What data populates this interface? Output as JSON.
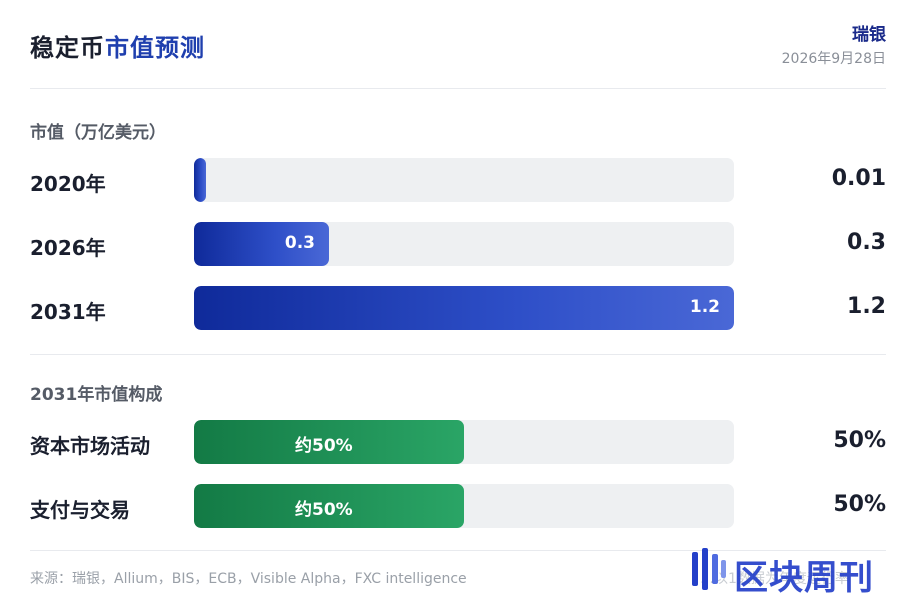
{
  "header": {
    "title_part1": "稳定币",
    "title_part2": "市值预测",
    "source_org": "瑞银",
    "date": "2026年9月28日"
  },
  "section1": {
    "title": "市值（万亿美元）",
    "rows": [
      {
        "label": "2020年",
        "bar_label": "",
        "value_text": "0.01"
      },
      {
        "label": "2026年",
        "bar_label": "0.3",
        "value_text": "0.3"
      },
      {
        "label": "2031年",
        "bar_label": "1.2",
        "value_text": "1.2"
      }
    ]
  },
  "section2": {
    "title": "2031年市值构成",
    "rows": [
      {
        "label": "资本市场活动",
        "bar_label": "约50%",
        "value_text": "50%"
      },
      {
        "label": "支付与交易",
        "bar_label": "约50%",
        "value_text": "50%"
      }
    ]
  },
  "footer": {
    "source": "来源：瑞银，Allium，BIS，ECB，Visible Alpha，FXC intelligence",
    "note": "…以1数据为年度运行率"
  },
  "watermark": {
    "text": "区块周刊"
  },
  "colors": {
    "accent_blue": "#1f3fae",
    "bar_blue_start": "#0f2a9a",
    "bar_blue_end": "#4a68d6",
    "bar_green_start": "#137a45",
    "bar_green_end": "#2aa566",
    "track": "#eef0f2"
  },
  "chart_data": [
    {
      "type": "bar",
      "orientation": "horizontal",
      "title": "市值（万亿美元）",
      "categories": [
        "2020年",
        "2026年",
        "2031年"
      ],
      "values": [
        0.01,
        0.3,
        1.2
      ],
      "xlim": [
        0,
        1.2
      ],
      "grid": false
    },
    {
      "type": "bar",
      "orientation": "horizontal",
      "title": "2031年市值构成",
      "categories": [
        "资本市场活动",
        "支付与交易"
      ],
      "values": [
        50,
        50
      ],
      "xlim": [
        0,
        100
      ],
      "grid": false
    }
  ]
}
